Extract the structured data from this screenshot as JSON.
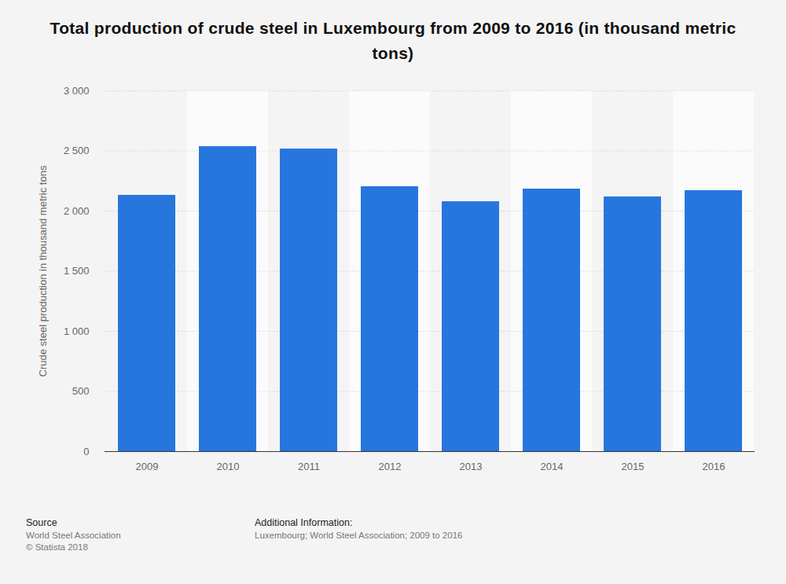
{
  "chart_data": {
    "type": "bar",
    "title": "Total production of crude steel in Luxembourg from 2009 to 2016 (in thousand metric tons)",
    "y_label": "Crude steel production in thousand metric tons",
    "categories": [
      "2009",
      "2010",
      "2011",
      "2012",
      "2013",
      "2014",
      "2015",
      "2016"
    ],
    "values": [
      2131,
      2536,
      2516,
      2203,
      2078,
      2183,
      2118,
      2170
    ],
    "color": "#2776de",
    "ylim": [
      0,
      3000
    ],
    "yticks": [
      0,
      500,
      {
        "value": 1000,
        "label": "1 000"
      },
      {
        "value": 1500,
        "label": "1 500"
      },
      {
        "value": 2000,
        "label": "2 000"
      },
      {
        "value": 2500,
        "label": "2 500"
      },
      {
        "value": 3000,
        "label": "3 000"
      }
    ],
    "grid": true,
    "data_labels": false,
    "source_heading": "Source",
    "source": "World Steel Association",
    "copyright": "© Statista 2018",
    "additional_info_heading": "Additional Information:",
    "additional_info": "Luxembourg; World Steel Association; 2009 to 2016"
  }
}
